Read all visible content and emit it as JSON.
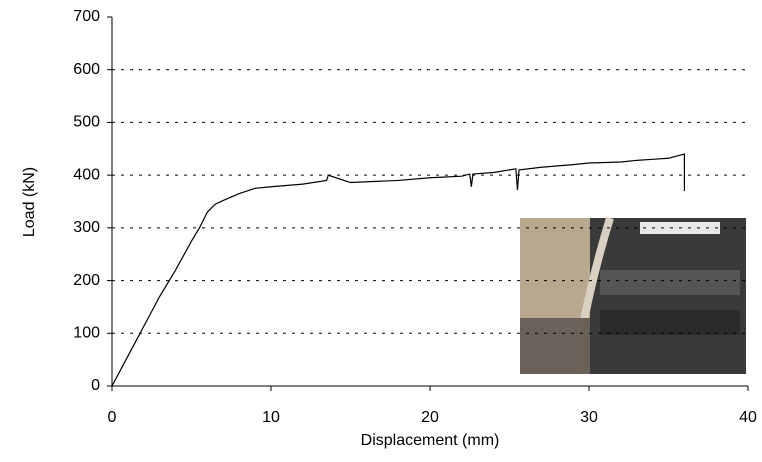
{
  "chart_data": {
    "type": "line",
    "x_label": "Displacement (mm)",
    "y_label": "Load (kN)",
    "x": [
      0,
      3,
      4,
      5,
      5.5,
      6,
      6.5,
      7,
      8,
      9,
      10,
      12,
      13.5,
      13.6,
      15,
      18,
      20,
      22,
      22.5,
      22.6,
      22.7,
      24,
      25.4,
      25.5,
      25.6,
      27,
      29,
      30,
      32,
      33,
      34,
      35,
      35.5,
      36,
      36
    ],
    "series": [
      {
        "name": "Load",
        "color": "#000000",
        "values": [
          0,
          170,
          220,
          275,
          300,
          330,
          345,
          352,
          365,
          375,
          378,
          383,
          390,
          400,
          386,
          390,
          395,
          398,
          402,
          378,
          402,
          405,
          412,
          372,
          410,
          415,
          420,
          423,
          425,
          428,
          430,
          432,
          436,
          440,
          370
        ]
      }
    ],
    "xlim": [
      0,
      40
    ],
    "xticks": [
      0,
      10,
      20,
      30,
      40
    ],
    "ylim": [
      0,
      700
    ],
    "yticks": [
      0,
      100,
      200,
      300,
      400,
      500,
      600,
      700
    ],
    "grid": true
  }
}
